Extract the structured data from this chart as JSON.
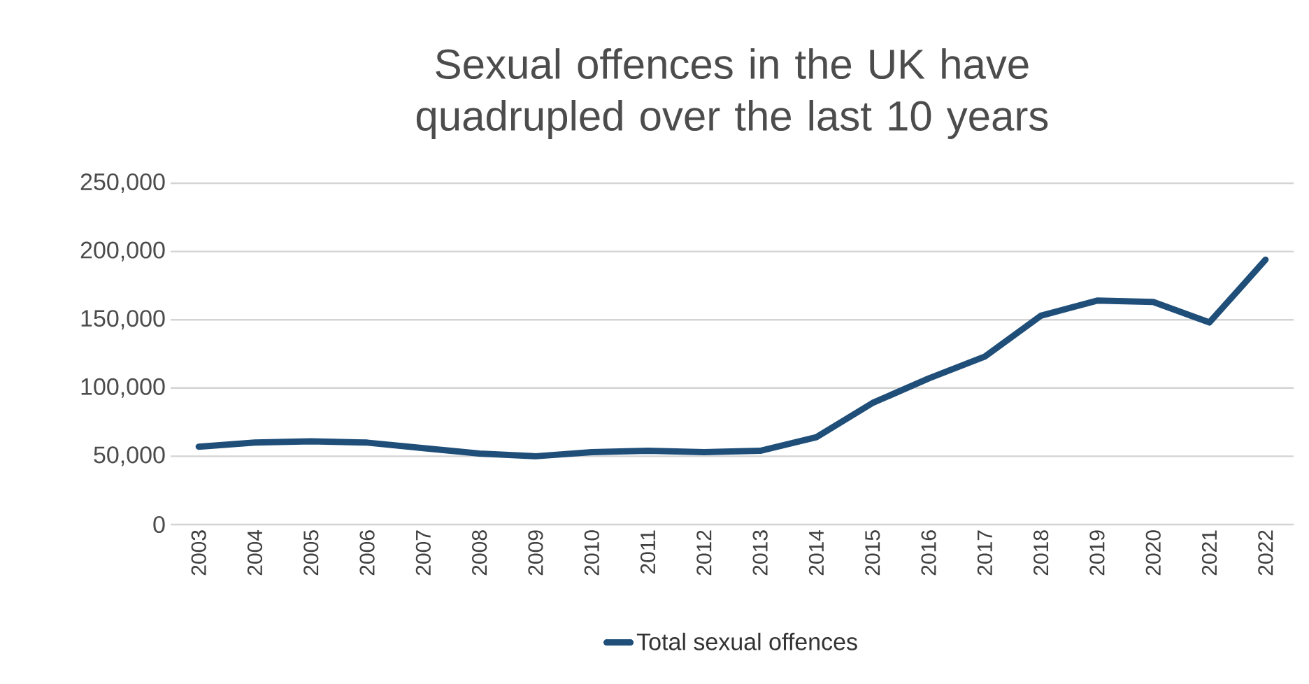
{
  "chart_data": {
    "type": "line",
    "title": "Sexual offences in the UK have quadrupled over the last 10 years",
    "categories": [
      "2003",
      "2004",
      "2005",
      "2006",
      "2007",
      "2008",
      "2009",
      "2010",
      "2011",
      "2012",
      "2013",
      "2014",
      "2015",
      "2016",
      "2017",
      "2018",
      "2019",
      "2020",
      "2021",
      "2022"
    ],
    "series": [
      {
        "name": "Total sexual offences",
        "color": "#1f4e79",
        "values": [
          57000,
          60000,
          61000,
          60000,
          56000,
          52000,
          50000,
          53000,
          54000,
          53000,
          54000,
          64000,
          89000,
          107000,
          123000,
          153000,
          164000,
          163000,
          148000,
          194000
        ]
      }
    ],
    "ylim": [
      0,
      250000
    ],
    "yticks": [
      0,
      {
        "value": 50000,
        "label": "50,000"
      },
      {
        "value": 100000,
        "label": "100,000"
      },
      {
        "value": 150000,
        "label": "150,000"
      },
      {
        "value": 200000,
        "label": "200,000"
      },
      {
        "value": 250000,
        "label": "250,000"
      }
    ],
    "grid": "y",
    "legend": "bottom",
    "line_style": "solid",
    "marker": "none"
  }
}
